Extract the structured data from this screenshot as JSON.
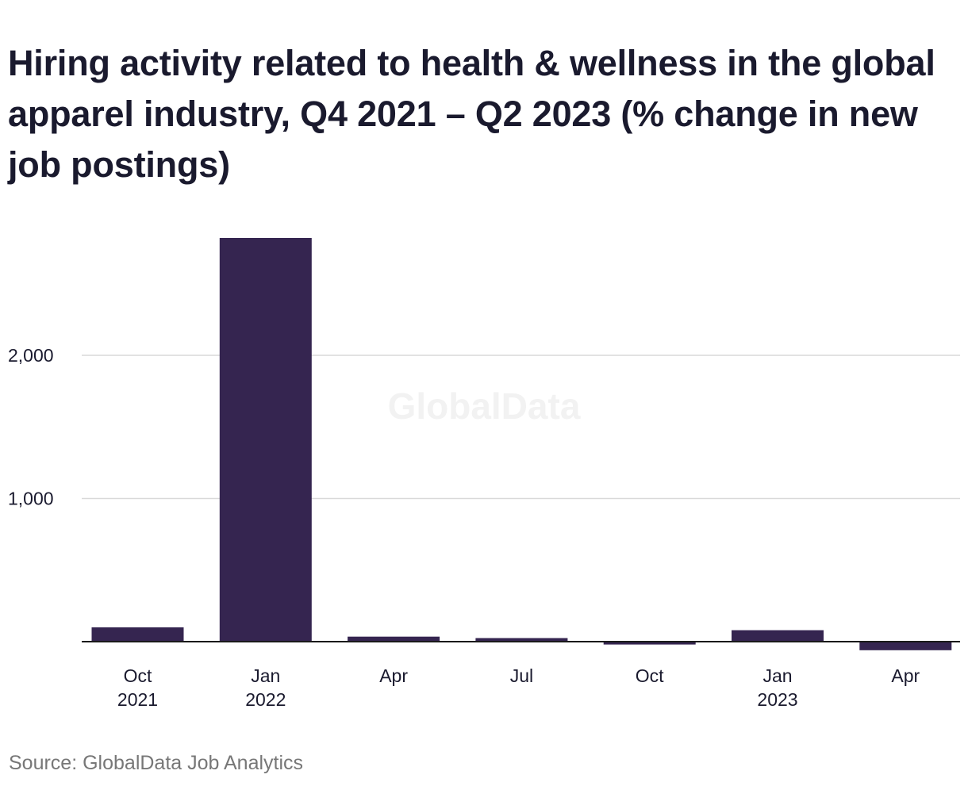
{
  "title": "Hiring activity related to health & wellness in the global apparel industry, Q4 2021 – Q2 2023 (% change in new job postings)",
  "source": "Source: GlobalData Job Analytics",
  "watermark": "GlobalData",
  "colors": {
    "bar": "#352550",
    "grid": "#d9d9d9",
    "axis": "#1a1a1a",
    "text": "#1a1a2e",
    "source": "#777777",
    "watermark": "#f2f2f2"
  },
  "chart_data": {
    "type": "bar",
    "title": "Hiring activity related to health & wellness in the global apparel industry, Q4 2021 – Q2 2023 (% change in new job postings)",
    "xlabel": "",
    "ylabel": "",
    "categories": [
      {
        "line1": "Oct",
        "line2": "2021"
      },
      {
        "line1": "Jan",
        "line2": "2022"
      },
      {
        "line1": "Apr",
        "line2": ""
      },
      {
        "line1": "Jul",
        "line2": ""
      },
      {
        "line1": "Oct",
        "line2": ""
      },
      {
        "line1": "Jan",
        "line2": "2023"
      },
      {
        "line1": "Apr",
        "line2": ""
      }
    ],
    "values": [
      100,
      2820,
      35,
      25,
      -20,
      80,
      -60
    ],
    "yticks": [
      {
        "value": 1000,
        "label": "1,000"
      },
      {
        "value": 2000,
        "label": "2,000"
      }
    ],
    "ylim": [
      -100,
      3000
    ],
    "grid": true,
    "legend": "none"
  }
}
